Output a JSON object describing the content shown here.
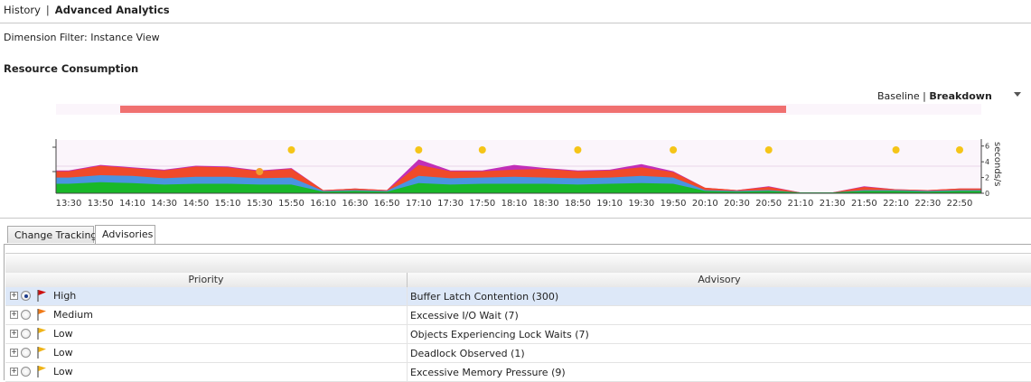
{
  "breadcrumb": {
    "history": "History",
    "separator": "|",
    "current": "Advanced Analytics"
  },
  "dimension_filter": "Dimension Filter: Instance View",
  "section_title": "Resource Consumption",
  "chart_mode": {
    "baseline": "Baseline",
    "separator": "|",
    "breakdown": "Breakdown"
  },
  "chart_data": {
    "type": "area",
    "categories": [
      "13:30",
      "13:50",
      "14:10",
      "14:30",
      "14:50",
      "15:10",
      "15:30",
      "15:50",
      "16:10",
      "16:30",
      "16:50",
      "17:10",
      "17:30",
      "17:50",
      "18:10",
      "18:30",
      "18:50",
      "19:10",
      "19:30",
      "19:50",
      "20:10",
      "20:30",
      "20:50",
      "21:10",
      "21:30",
      "21:50",
      "22:10",
      "22:30",
      "22:50"
    ],
    "ylabel": "seconds/s",
    "y_ticks": [
      "0",
      "2",
      "4",
      "6"
    ],
    "ylim": [
      0,
      7
    ],
    "stacked": true,
    "series": [
      {
        "color": "#19b829",
        "values": [
          1.2,
          1.4,
          1.3,
          1.1,
          1.2,
          1.2,
          1.1,
          1.1,
          0.2,
          0.3,
          0.2,
          1.3,
          1.1,
          1.2,
          1.2,
          1.2,
          1.1,
          1.2,
          1.3,
          1.2,
          0.3,
          0.2,
          0.3,
          0.1,
          0.1,
          0.3,
          0.3,
          0.2,
          0.3
        ]
      },
      {
        "color": "#4a94e0",
        "values": [
          0.8,
          0.9,
          0.9,
          0.8,
          0.9,
          0.9,
          0.8,
          0.9,
          0.1,
          0.1,
          0.1,
          0.9,
          0.8,
          0.8,
          0.9,
          0.8,
          0.8,
          0.8,
          0.9,
          0.8,
          0.1,
          0.1,
          0.1,
          0.0,
          0.0,
          0.1,
          0.1,
          0.1,
          0.1
        ]
      },
      {
        "color": "#f04a2a",
        "values": [
          0.8,
          1.2,
          1.0,
          1.0,
          1.3,
          1.2,
          0.9,
          1.1,
          0.1,
          0.2,
          0.1,
          1.4,
          0.9,
          0.8,
          0.9,
          1.1,
          0.9,
          0.9,
          1.1,
          0.7,
          0.3,
          0.1,
          0.4,
          0.0,
          0.0,
          0.4,
          0.1,
          0.1,
          0.2
        ]
      },
      {
        "color": "#c12fb8",
        "values": [
          0.1,
          0.1,
          0.1,
          0.1,
          0.1,
          0.1,
          0.1,
          0.1,
          0.0,
          0.0,
          0.0,
          0.7,
          0.1,
          0.1,
          0.6,
          0.1,
          0.1,
          0.1,
          0.4,
          0.1,
          0.0,
          0.0,
          0.1,
          0.0,
          0.0,
          0.1,
          0.0,
          0.0,
          0.0
        ]
      }
    ],
    "markers": [
      {
        "x": "15:30",
        "color": "#f0a030"
      },
      {
        "x": "15:50",
        "color": "#f5c518"
      },
      {
        "x": "17:10",
        "color": "#f5c518"
      },
      {
        "x": "17:50",
        "color": "#f5c518"
      },
      {
        "x": "18:50",
        "color": "#f5c518"
      },
      {
        "x": "19:50",
        "color": "#f5c518"
      },
      {
        "x": "20:50",
        "color": "#f5c518"
      },
      {
        "x": "22:10",
        "color": "#f5c518"
      },
      {
        "x": "22:50",
        "color": "#f5c518"
      }
    ],
    "timeline_bar_color": "#f07070"
  },
  "tabs": [
    {
      "label": "Change Tracking",
      "active": false
    },
    {
      "label": "Advisories",
      "active": true
    }
  ],
  "grid": {
    "columns": [
      "Priority",
      "Advisory"
    ],
    "rows": [
      {
        "priority": "High",
        "flag_color": "#cc1010",
        "advisory": "Buffer Latch Contention (300)",
        "selected": true
      },
      {
        "priority": "Medium",
        "flag_color": "#f07a18",
        "advisory": "Excessive I/O Wait (7)",
        "selected": false
      },
      {
        "priority": "Low",
        "flag_color": "#f0b418",
        "advisory": "Objects Experiencing Lock Waits (7)",
        "selected": false
      },
      {
        "priority": "Low",
        "flag_color": "#f0b418",
        "advisory": "Deadlock Observed (1)",
        "selected": false
      },
      {
        "priority": "Low",
        "flag_color": "#f0b418",
        "advisory": "Excessive Memory Pressure (9)",
        "selected": false
      }
    ]
  }
}
